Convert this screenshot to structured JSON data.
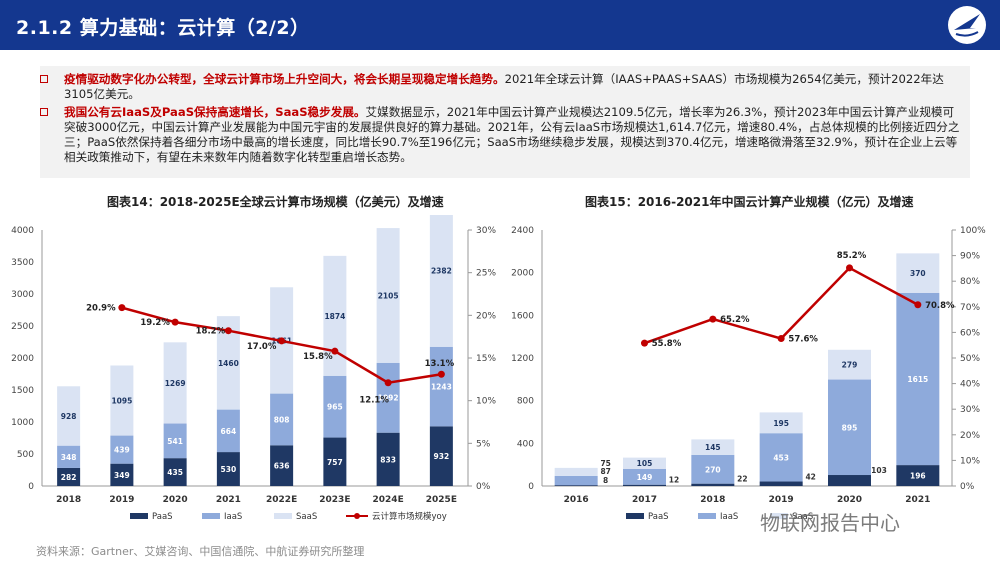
{
  "header": {
    "title": "2.1.2 算力基础：云计算（2/2）"
  },
  "bullets": [
    {
      "bold": "疫情驱动数字化办公转型，全球云计算市场上升空间大，将会长期呈现稳定增长趋势。",
      "text": "2021年全球云计算（IAAS+PAAS+SAAS）市场规模为2654亿美元，预计2022年达3105亿美元。"
    },
    {
      "bold": "我国公有云IaaS及PaaS保持高速增长，SaaS稳步发展。",
      "text": "艾媒数据显示，2021年中国云计算产业规模达2109.5亿元，增长率为26.3%，预计2023年中国云计算产业规模可突破3000亿元，中国云计算产业发展能为中国元宇宙的发展提供良好的算力基础。2021年，公有云IaaS市场规模达1,614.7亿元，增速80.4%，占总体规模的比例接近四分之三；PaaS依然保持着各细分市场中最高的增长速度，同比增长90.7%至196亿元；SaaS市场继续稳步发展，规模达到370.4亿元，增速略微滑落至32.9%，预计在企业上云等相关政策推动下，有望在未来数年内随着数字化转型重启增长态势。"
    }
  ],
  "colors": {
    "header": "#14378f",
    "paas": "#1f3864",
    "iaas": "#8eaadb",
    "saas": "#dae3f3",
    "line": "#c00000"
  },
  "chart_data": [
    {
      "type": "bar",
      "title": "图表14：2018-2025E全球云计算市场规模（亿美元）及增速",
      "categories": [
        "2018",
        "2019",
        "2020",
        "2021",
        "2022E",
        "2023E",
        "2024E",
        "2025E"
      ],
      "series": [
        {
          "name": "PaaS",
          "values": [
            282,
            349,
            435,
            530,
            636,
            757,
            833,
            932
          ]
        },
        {
          "name": "IaaS",
          "values": [
            348,
            439,
            541,
            664,
            808,
            965,
            1092,
            1243
          ]
        },
        {
          "name": "SaaS",
          "values": [
            928,
            1095,
            1269,
            1460,
            1661,
            1874,
            2105,
            2382
          ]
        },
        {
          "name": "云计算市场规模yoy",
          "values": [
            20.9,
            19.2,
            18.2,
            17.0,
            15.8,
            12.1,
            13.1
          ],
          "x": [
            "2019",
            "2020",
            "2021",
            "2022E",
            "2023E",
            "2024E",
            "2025E"
          ],
          "labels": [
            "20.9%",
            "19.2%",
            "18.2%",
            "17.0%",
            "15.8%",
            "12.1%",
            "13.1%"
          ]
        }
      ],
      "ylim": [
        0,
        4000
      ],
      "yticks": [
        "0",
        "500",
        "1000",
        "1500",
        "2000",
        "2500",
        "3000",
        "3500",
        "4000"
      ],
      "y2lim": [
        0,
        30
      ],
      "y2ticks": [
        "0%",
        "5%",
        "10%",
        "15%",
        "20%",
        "25%",
        "30%"
      ],
      "legend": [
        "PaaS",
        "IaaS",
        "SaaS",
        "云计算市场规模yoy"
      ]
    },
    {
      "type": "bar",
      "title": "图表15：2016-2021年中国云计算产业规模（亿元）及增速",
      "categories": [
        "2016",
        "2017",
        "2018",
        "2019",
        "2020",
        "2021"
      ],
      "series": [
        {
          "name": "PaaS",
          "values": [
            8,
            12,
            22,
            42,
            103,
            196
          ]
        },
        {
          "name": "IaaS",
          "values": [
            87,
            149,
            270,
            453,
            895,
            1615
          ]
        },
        {
          "name": "SaaS",
          "values": [
            75,
            105,
            145,
            195,
            279,
            370
          ]
        },
        {
          "name": "增速",
          "values": [
            55.8,
            65.2,
            57.6,
            85.2,
            70.8
          ],
          "x": [
            "2017",
            "2018",
            "2019",
            "2020",
            "2021"
          ],
          "labels": [
            "55.8%",
            "65.2%",
            "57.6%",
            "85.2%",
            "70.8%"
          ]
        }
      ],
      "ylim": [
        0,
        2400
      ],
      "yticks": [
        "0",
        "400",
        "800",
        "1200",
        "1600",
        "2000",
        "2400"
      ],
      "y2lim": [
        0,
        100
      ],
      "y2ticks": [
        "0%",
        "10%",
        "20%",
        "30%",
        "40%",
        "50%",
        "60%",
        "70%",
        "80%",
        "90%",
        "100%"
      ],
      "legend": [
        "PaaS",
        "IaaS",
        "SaaS"
      ]
    }
  ],
  "source": "资料来源：Gartner、艾媒咨询、中国信通院、中航证券研究所整理",
  "watermark": "物联网报告中心"
}
